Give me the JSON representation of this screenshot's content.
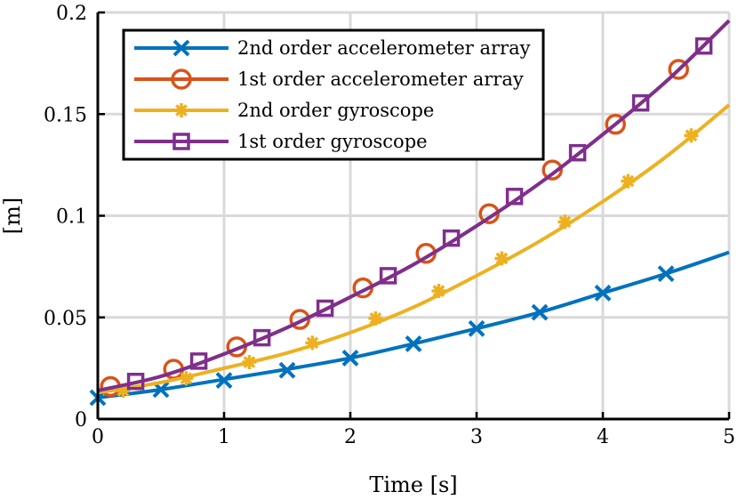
{
  "chart_data": {
    "type": "line",
    "xlabel": "Time [s]",
    "ylabel": "[m]",
    "xlim": [
      0,
      5
    ],
    "ylim": [
      0,
      0.2
    ],
    "xticks": [
      0,
      1,
      2,
      3,
      4,
      5
    ],
    "xtick_labels": [
      "0",
      "1",
      "2",
      "3",
      "4",
      "5"
    ],
    "yticks": [
      0,
      0.05,
      0.1,
      0.15,
      0.2
    ],
    "ytick_labels": [
      "0",
      "0.05",
      "0.1",
      "0.15",
      "0.2"
    ],
    "grid": true,
    "legend_position": "top-left",
    "series": [
      {
        "name": "2nd order accelerometer array",
        "color": "#0072BD",
        "marker": "x",
        "line": [
          [
            0,
            0.0105
          ],
          [
            0.5,
            0.0145
          ],
          [
            1,
            0.0195
          ],
          [
            1.5,
            0.0245
          ],
          [
            2,
            0.03
          ],
          [
            2.5,
            0.037
          ],
          [
            3,
            0.0445
          ],
          [
            3.5,
            0.0525
          ],
          [
            4,
            0.062
          ],
          [
            4.5,
            0.0715
          ],
          [
            5,
            0.082
          ]
        ],
        "markers": [
          [
            0,
            0.0105
          ],
          [
            0.5,
            0.0145
          ],
          [
            1,
            0.019
          ],
          [
            1.5,
            0.024
          ],
          [
            2,
            0.03
          ],
          [
            2.5,
            0.037
          ],
          [
            3,
            0.0445
          ],
          [
            3.5,
            0.0525
          ],
          [
            4,
            0.062
          ],
          [
            4.5,
            0.0715
          ]
        ]
      },
      {
        "name": "1st order accelerometer array",
        "color": "#D95319",
        "marker": "circle",
        "line": [
          [
            0,
            0.014
          ],
          [
            0.5,
            0.021
          ],
          [
            1,
            0.032
          ],
          [
            1.5,
            0.045
          ],
          [
            2,
            0.06
          ],
          [
            2.5,
            0.076
          ],
          [
            3,
            0.095
          ],
          [
            3.5,
            0.116
          ],
          [
            4,
            0.14
          ],
          [
            4.5,
            0.166
          ],
          [
            5,
            0.196
          ]
        ],
        "markers": [
          [
            0.1,
            0.016
          ],
          [
            0.6,
            0.0245
          ],
          [
            1.1,
            0.0355
          ],
          [
            1.6,
            0.049
          ],
          [
            2.1,
            0.0645
          ],
          [
            2.6,
            0.0815
          ],
          [
            3.1,
            0.101
          ],
          [
            3.6,
            0.1225
          ],
          [
            4.1,
            0.145
          ],
          [
            4.6,
            0.172
          ]
        ]
      },
      {
        "name": "2nd order gyroscope",
        "color": "#EDB120",
        "marker": "asterisk",
        "line": [
          [
            0,
            0.013
          ],
          [
            0.5,
            0.018
          ],
          [
            1,
            0.025
          ],
          [
            1.5,
            0.0325
          ],
          [
            2,
            0.0425
          ],
          [
            2.5,
            0.055
          ],
          [
            3,
            0.0705
          ],
          [
            3.5,
            0.0875
          ],
          [
            4,
            0.107
          ],
          [
            4.5,
            0.129
          ],
          [
            5,
            0.1545
          ]
        ],
        "markers": [
          [
            0.2,
            0.014
          ],
          [
            0.7,
            0.02
          ],
          [
            1.2,
            0.028
          ],
          [
            1.7,
            0.0375
          ],
          [
            2.2,
            0.0495
          ],
          [
            2.7,
            0.063
          ],
          [
            3.2,
            0.079
          ],
          [
            3.7,
            0.097
          ],
          [
            4.2,
            0.117
          ],
          [
            4.7,
            0.1395
          ]
        ]
      },
      {
        "name": "1st order gyroscope",
        "color": "#7E2F8E",
        "marker": "square",
        "line": [
          [
            0,
            0.014
          ],
          [
            0.5,
            0.021
          ],
          [
            1,
            0.032
          ],
          [
            1.5,
            0.045
          ],
          [
            2,
            0.06
          ],
          [
            2.5,
            0.076
          ],
          [
            3,
            0.095
          ],
          [
            3.5,
            0.116
          ],
          [
            4,
            0.14
          ],
          [
            4.5,
            0.166
          ],
          [
            5,
            0.196
          ]
        ],
        "markers": [
          [
            0.3,
            0.0185
          ],
          [
            0.8,
            0.0285
          ],
          [
            1.3,
            0.04
          ],
          [
            1.8,
            0.0545
          ],
          [
            2.3,
            0.0705
          ],
          [
            2.8,
            0.089
          ],
          [
            3.3,
            0.1095
          ],
          [
            3.8,
            0.131
          ],
          [
            4.3,
            0.1555
          ],
          [
            4.8,
            0.1835
          ]
        ]
      }
    ]
  }
}
